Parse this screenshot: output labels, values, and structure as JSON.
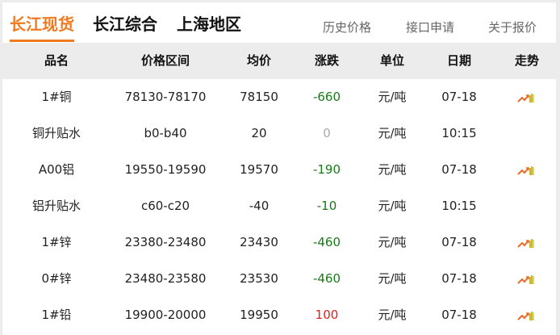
{
  "tabs": [
    "长江现货",
    "长江综合",
    "上海地区"
  ],
  "links": [
    "历史价格",
    "接口申请",
    "关于报价"
  ],
  "columns": [
    "品名",
    "价格区间",
    "均价",
    "涨跌",
    "单位",
    "日期",
    "走势"
  ],
  "rows": [
    {
      "name": "1#铜",
      "range": "78130-78170",
      "avg": "78150",
      "change": "-660",
      "dir": "down",
      "unit": "元/吨",
      "date": "07-18",
      "trend": true
    },
    {
      "name": "铜升贴水",
      "range": "b0-b40",
      "avg": "20",
      "change": "0",
      "dir": "flat",
      "unit": "元/吨",
      "date": "10:15",
      "trend": false
    },
    {
      "name": "A00铝",
      "range": "19550-19590",
      "avg": "19570",
      "change": "-190",
      "dir": "down",
      "unit": "元/吨",
      "date": "07-18",
      "trend": true
    },
    {
      "name": "铝升贴水",
      "range": "c60-c20",
      "avg": "-40",
      "change": "-10",
      "dir": "down",
      "unit": "元/吨",
      "date": "10:15",
      "trend": false
    },
    {
      "name": "1#锌",
      "range": "23380-23480",
      "avg": "23430",
      "change": "-460",
      "dir": "down",
      "unit": "元/吨",
      "date": "07-18",
      "trend": true
    },
    {
      "name": "0#锌",
      "range": "23480-23580",
      "avg": "23530",
      "change": "-460",
      "dir": "down",
      "unit": "元/吨",
      "date": "07-18",
      "trend": true
    },
    {
      "name": "1#铅",
      "range": "19900-20000",
      "avg": "19950",
      "change": "100",
      "dir": "up",
      "unit": "元/吨",
      "date": "07-18",
      "trend": true
    }
  ],
  "colors": {
    "accent": "#f07a20",
    "down": "#1a7a1a",
    "up": "#e02020",
    "flat": "#aaaaaa"
  }
}
